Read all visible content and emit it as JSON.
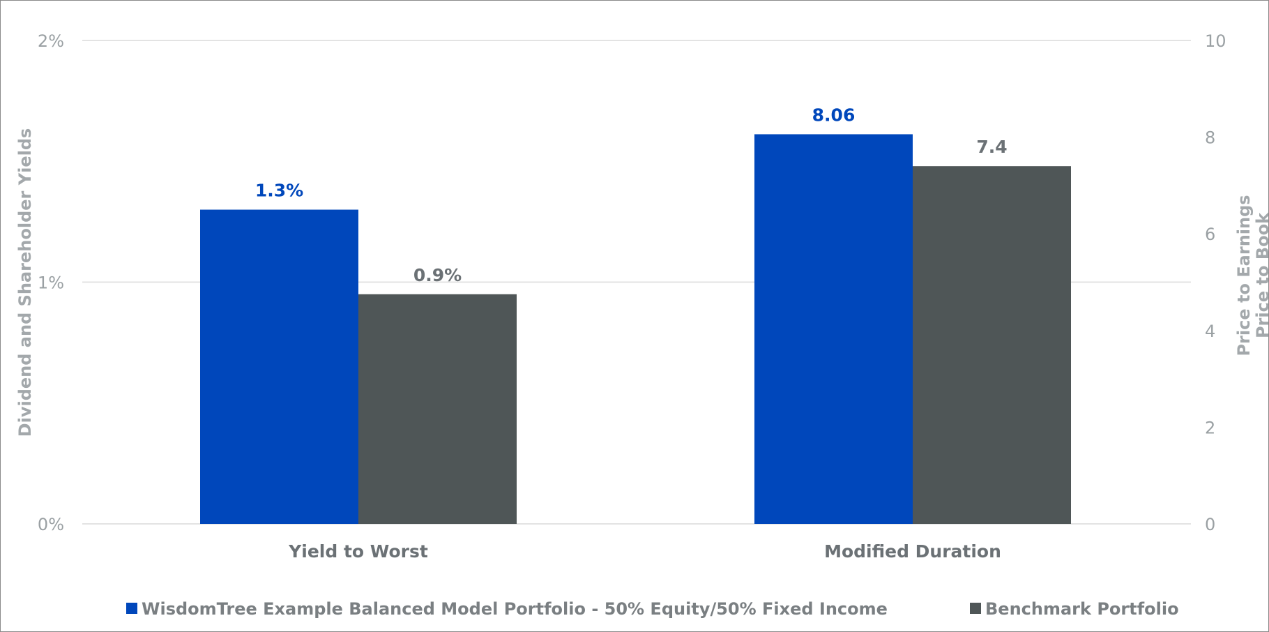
{
  "chart_data": {
    "type": "bar",
    "categories": [
      "Yield to Worst",
      "Modified Duration"
    ],
    "series": [
      {
        "name": "WisdomTree Example Balanced Model Portfolio - 50% Equity/50% Fixed Income",
        "color": "#0047BB",
        "label_color": "#0047BB",
        "values": [
          1.3,
          8.06
        ],
        "labels": [
          "1.3%",
          "8.06"
        ]
      },
      {
        "name": "Benchmark Portfolio",
        "color": "#4F5657",
        "label_color": "#6B7175",
        "values": [
          0.95,
          7.4
        ],
        "labels": [
          "0.9%",
          "7.4"
        ]
      }
    ],
    "category_axis": [
      "left",
      "right"
    ],
    "left_axis": {
      "title": "Dividend and Shareholder Yields",
      "ylim": [
        0,
        2
      ],
      "ticks": [
        0,
        1,
        2
      ],
      "tick_labels": [
        "0%",
        "1%",
        "2%"
      ]
    },
    "right_axis": {
      "title_lines": [
        "Price to Earnings",
        "Price to Book"
      ],
      "ylim": [
        0,
        10
      ],
      "ticks": [
        0,
        2,
        4,
        6,
        8,
        10
      ],
      "tick_labels": [
        "0",
        "2",
        "4",
        "6",
        "8",
        "10"
      ]
    },
    "gridlines": true,
    "legend_position": "bottom"
  }
}
